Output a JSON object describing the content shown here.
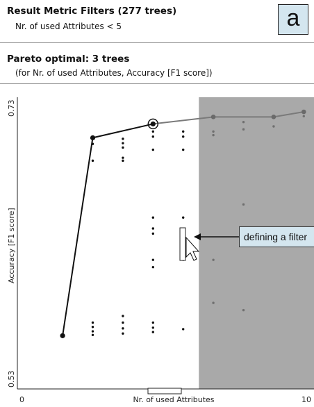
{
  "header": {
    "title": "Result Metric Filters (277 trees)",
    "filter_text": "Nr. of used Attributes < 5",
    "badge": "a"
  },
  "pareto": {
    "title": "Pareto optimal: 3 trees",
    "subtitle": "(for Nr. of used Attributes, Accuracy [F1 score])"
  },
  "chart_data": {
    "type": "scatter",
    "xlabel": "Nr. of used Attributes",
    "ylabel": "Accuracy [F1 score]",
    "xlim": [
      0,
      10
    ],
    "ylim": [
      0.53,
      0.73
    ],
    "x_tick_labels": [
      "0",
      "10"
    ],
    "y_tick_labels": [
      "0.53",
      "0.73"
    ],
    "filter": {
      "attribute": "Nr. of used Attributes",
      "lt": 5,
      "excluded_region_color": "#a9a9a9"
    },
    "pareto_front": {
      "included": [
        {
          "x": 1.5,
          "y": 0.5665
        },
        {
          "x": 2.5,
          "y": 0.7022
        },
        {
          "x": 4.5,
          "y": 0.7117
        }
      ],
      "excluded": [
        {
          "x": 4.5,
          "y": 0.7117
        },
        {
          "x": 6.5,
          "y": 0.7165
        },
        {
          "x": 8.5,
          "y": 0.7165
        },
        {
          "x": 9.5,
          "y": 0.72
        }
      ],
      "highlighted": {
        "x": 4.5,
        "y": 0.7117
      }
    },
    "points": [
      {
        "x": 2.5,
        "y": 0.698
      },
      {
        "x": 2.5,
        "y": 0.6865
      },
      {
        "x": 3.5,
        "y": 0.7015
      },
      {
        "x": 3.5,
        "y": 0.6985
      },
      {
        "x": 3.5,
        "y": 0.6955
      },
      {
        "x": 3.5,
        "y": 0.6885
      },
      {
        "x": 3.5,
        "y": 0.6865
      },
      {
        "x": 3.5,
        "y": 0.58
      },
      {
        "x": 3.5,
        "y": 0.5755
      },
      {
        "x": 3.5,
        "y": 0.5715
      },
      {
        "x": 3.5,
        "y": 0.568
      },
      {
        "x": 2.5,
        "y": 0.5755
      },
      {
        "x": 2.5,
        "y": 0.5725
      },
      {
        "x": 2.5,
        "y": 0.5695
      },
      {
        "x": 2.5,
        "y": 0.567
      },
      {
        "x": 4.5,
        "y": 0.7065
      },
      {
        "x": 4.5,
        "y": 0.703
      },
      {
        "x": 4.5,
        "y": 0.694
      },
      {
        "x": 4.5,
        "y": 0.6475
      },
      {
        "x": 4.5,
        "y": 0.64
      },
      {
        "x": 4.5,
        "y": 0.6365
      },
      {
        "x": 4.5,
        "y": 0.6185
      },
      {
        "x": 4.5,
        "y": 0.6135
      },
      {
        "x": 4.5,
        "y": 0.5755
      },
      {
        "x": 4.5,
        "y": 0.572
      },
      {
        "x": 4.5,
        "y": 0.569
      },
      {
        "x": 5.5,
        "y": 0.7065
      },
      {
        "x": 5.5,
        "y": 0.703
      },
      {
        "x": 5.5,
        "y": 0.694
      },
      {
        "x": 5.5,
        "y": 0.6475
      },
      {
        "x": 5.5,
        "y": 0.6185
      },
      {
        "x": 5.5,
        "y": 0.571
      },
      {
        "x": 6.5,
        "y": 0.7065
      },
      {
        "x": 6.5,
        "y": 0.704
      },
      {
        "x": 6.5,
        "y": 0.6185
      },
      {
        "x": 6.5,
        "y": 0.589
      },
      {
        "x": 7.5,
        "y": 0.713
      },
      {
        "x": 7.5,
        "y": 0.708
      },
      {
        "x": 7.5,
        "y": 0.6565
      },
      {
        "x": 7.5,
        "y": 0.584
      },
      {
        "x": 8.5,
        "y": 0.71
      },
      {
        "x": 9.5,
        "y": 0.717
      }
    ]
  },
  "annotation": {
    "text": "defining a filter"
  }
}
